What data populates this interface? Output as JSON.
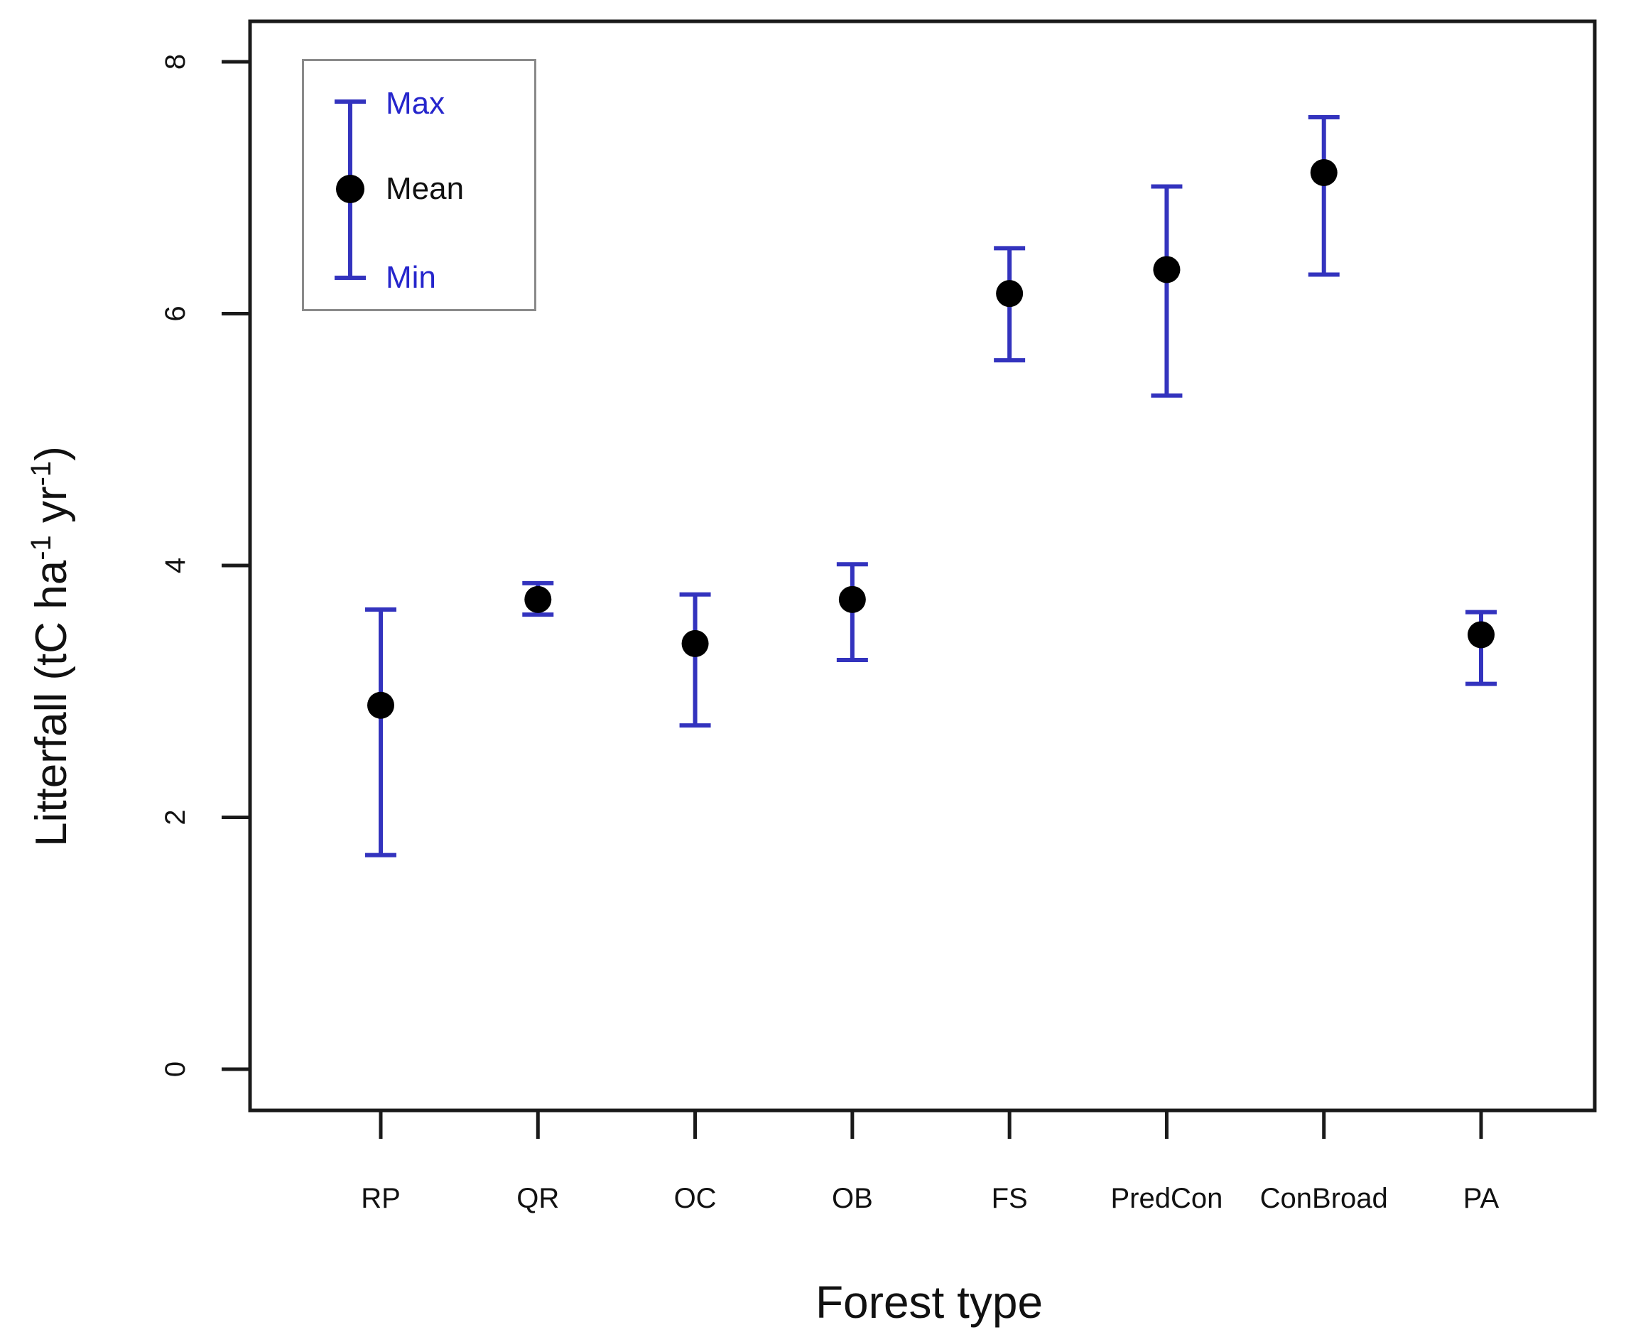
{
  "chart_data": {
    "type": "scatter",
    "subtype": "mean-with-min-max-error-bars",
    "title": "",
    "xlabel": "Forest type",
    "ylabel_parts": [
      {
        "text": "Litterfall (tC ha",
        "sup": false
      },
      {
        "text": "-1",
        "sup": true
      },
      {
        "text": " yr",
        "sup": false
      },
      {
        "text": "-1",
        "sup": true
      },
      {
        "text": ")",
        "sup": false
      }
    ],
    "categories": [
      "RP",
      "QR",
      "OC",
      "OB",
      "FS",
      "PredCon",
      "ConBroad",
      "PA"
    ],
    "series": [
      {
        "name": "Mean",
        "values": [
          2.89,
          3.73,
          3.38,
          3.73,
          6.16,
          6.35,
          7.12,
          3.45
        ]
      },
      {
        "name": "Max",
        "values": [
          3.65,
          3.86,
          3.77,
          4.01,
          6.52,
          7.01,
          7.56,
          3.63
        ]
      },
      {
        "name": "Min",
        "values": [
          1.7,
          3.61,
          2.73,
          3.25,
          5.63,
          5.35,
          6.31,
          3.06
        ]
      }
    ],
    "yticks": [
      0,
      2,
      4,
      6,
      8
    ],
    "ylim": [
      -0.3,
      8.6
    ],
    "grid": "off",
    "legend": {
      "position": "top-left",
      "entries": [
        {
          "label": "Max",
          "color": "#2626CC"
        },
        {
          "label": "Mean",
          "color": "#111111"
        },
        {
          "label": "Min",
          "color": "#2626CC"
        }
      ]
    },
    "colors": {
      "error_bar": "#3333BE",
      "mean_marker": "#000000",
      "axis": "#1a1a1a",
      "legend_border": "#8a8a8a",
      "background": "#ffffff"
    }
  }
}
